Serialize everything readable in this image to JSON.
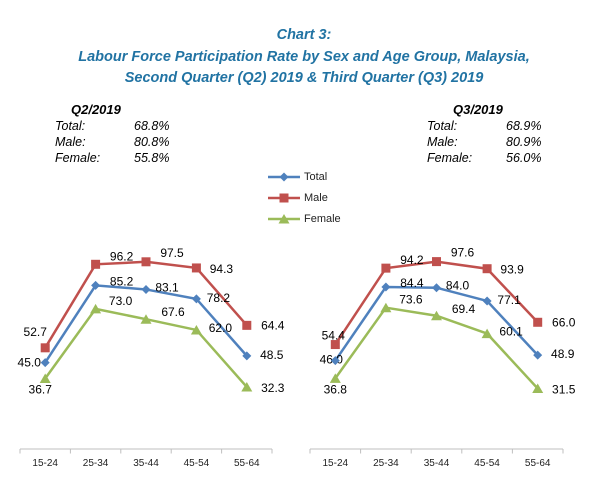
{
  "title": {
    "line1": "Chart 3:",
    "line2": "Labour Force Participation Rate by Sex and Age Group, Malaysia,",
    "line3": "Second Quarter (Q2) 2019 & Third Quarter (Q3) 2019"
  },
  "colors": {
    "title_text": "#2173A3",
    "total": "#4F81BD",
    "male": "#C0504D",
    "female": "#9BBB59",
    "axis": "#BFBFBF",
    "data_label": "#000000"
  },
  "summaries": [
    {
      "period": "Q2/2019",
      "rows": [
        {
          "label": "Total:",
          "value": "68.8%"
        },
        {
          "label": "Male:",
          "value": "80.8%"
        },
        {
          "label": "Female:",
          "value": "55.8%"
        }
      ]
    },
    {
      "period": "Q3/2019",
      "rows": [
        {
          "label": "Total:",
          "value": "68.9%"
        },
        {
          "label": "Male:",
          "value": "80.9%"
        },
        {
          "label": "Female:",
          "value": "56.0%"
        }
      ]
    }
  ],
  "legend": {
    "items": [
      "Total",
      "Male",
      "Female"
    ],
    "position": "top-center"
  },
  "chart_data": [
    {
      "type": "line",
      "period": "Q2/2019",
      "title": "Q2/2019",
      "xlabel": "",
      "ylabel": "",
      "categories": [
        "15-24",
        "25-34",
        "35-44",
        "45-54",
        "55-64"
      ],
      "series": [
        {
          "name": "Total",
          "marker": "diamond",
          "color": "#4F81BD",
          "values": [
            45.0,
            85.2,
            83.1,
            78.2,
            48.5
          ]
        },
        {
          "name": "Male",
          "marker": "square",
          "color": "#C0504D",
          "values": [
            52.7,
            96.2,
            97.5,
            94.3,
            64.4
          ]
        },
        {
          "name": "Female",
          "marker": "triangle",
          "color": "#9BBB59",
          "values": [
            36.7,
            73.0,
            67.6,
            62.0,
            32.3
          ]
        }
      ],
      "ylim": [
        0,
        120
      ],
      "grid": false,
      "data_labels": true
    },
    {
      "type": "line",
      "period": "Q3/2019",
      "title": "Q3/2019",
      "xlabel": "",
      "ylabel": "",
      "categories": [
        "15-24",
        "25-34",
        "35-44",
        "45-54",
        "55-64"
      ],
      "series": [
        {
          "name": "Total",
          "marker": "diamond",
          "color": "#4F81BD",
          "values": [
            46.0,
            84.4,
            84.0,
            77.1,
            48.9
          ]
        },
        {
          "name": "Male",
          "marker": "square",
          "color": "#C0504D",
          "values": [
            54.4,
            94.2,
            97.6,
            93.9,
            66.0
          ]
        },
        {
          "name": "Female",
          "marker": "triangle",
          "color": "#9BBB59",
          "values": [
            36.8,
            73.6,
            69.4,
            60.1,
            31.5
          ]
        }
      ],
      "ylim": [
        0,
        120
      ],
      "grid": false,
      "data_labels": true
    }
  ]
}
